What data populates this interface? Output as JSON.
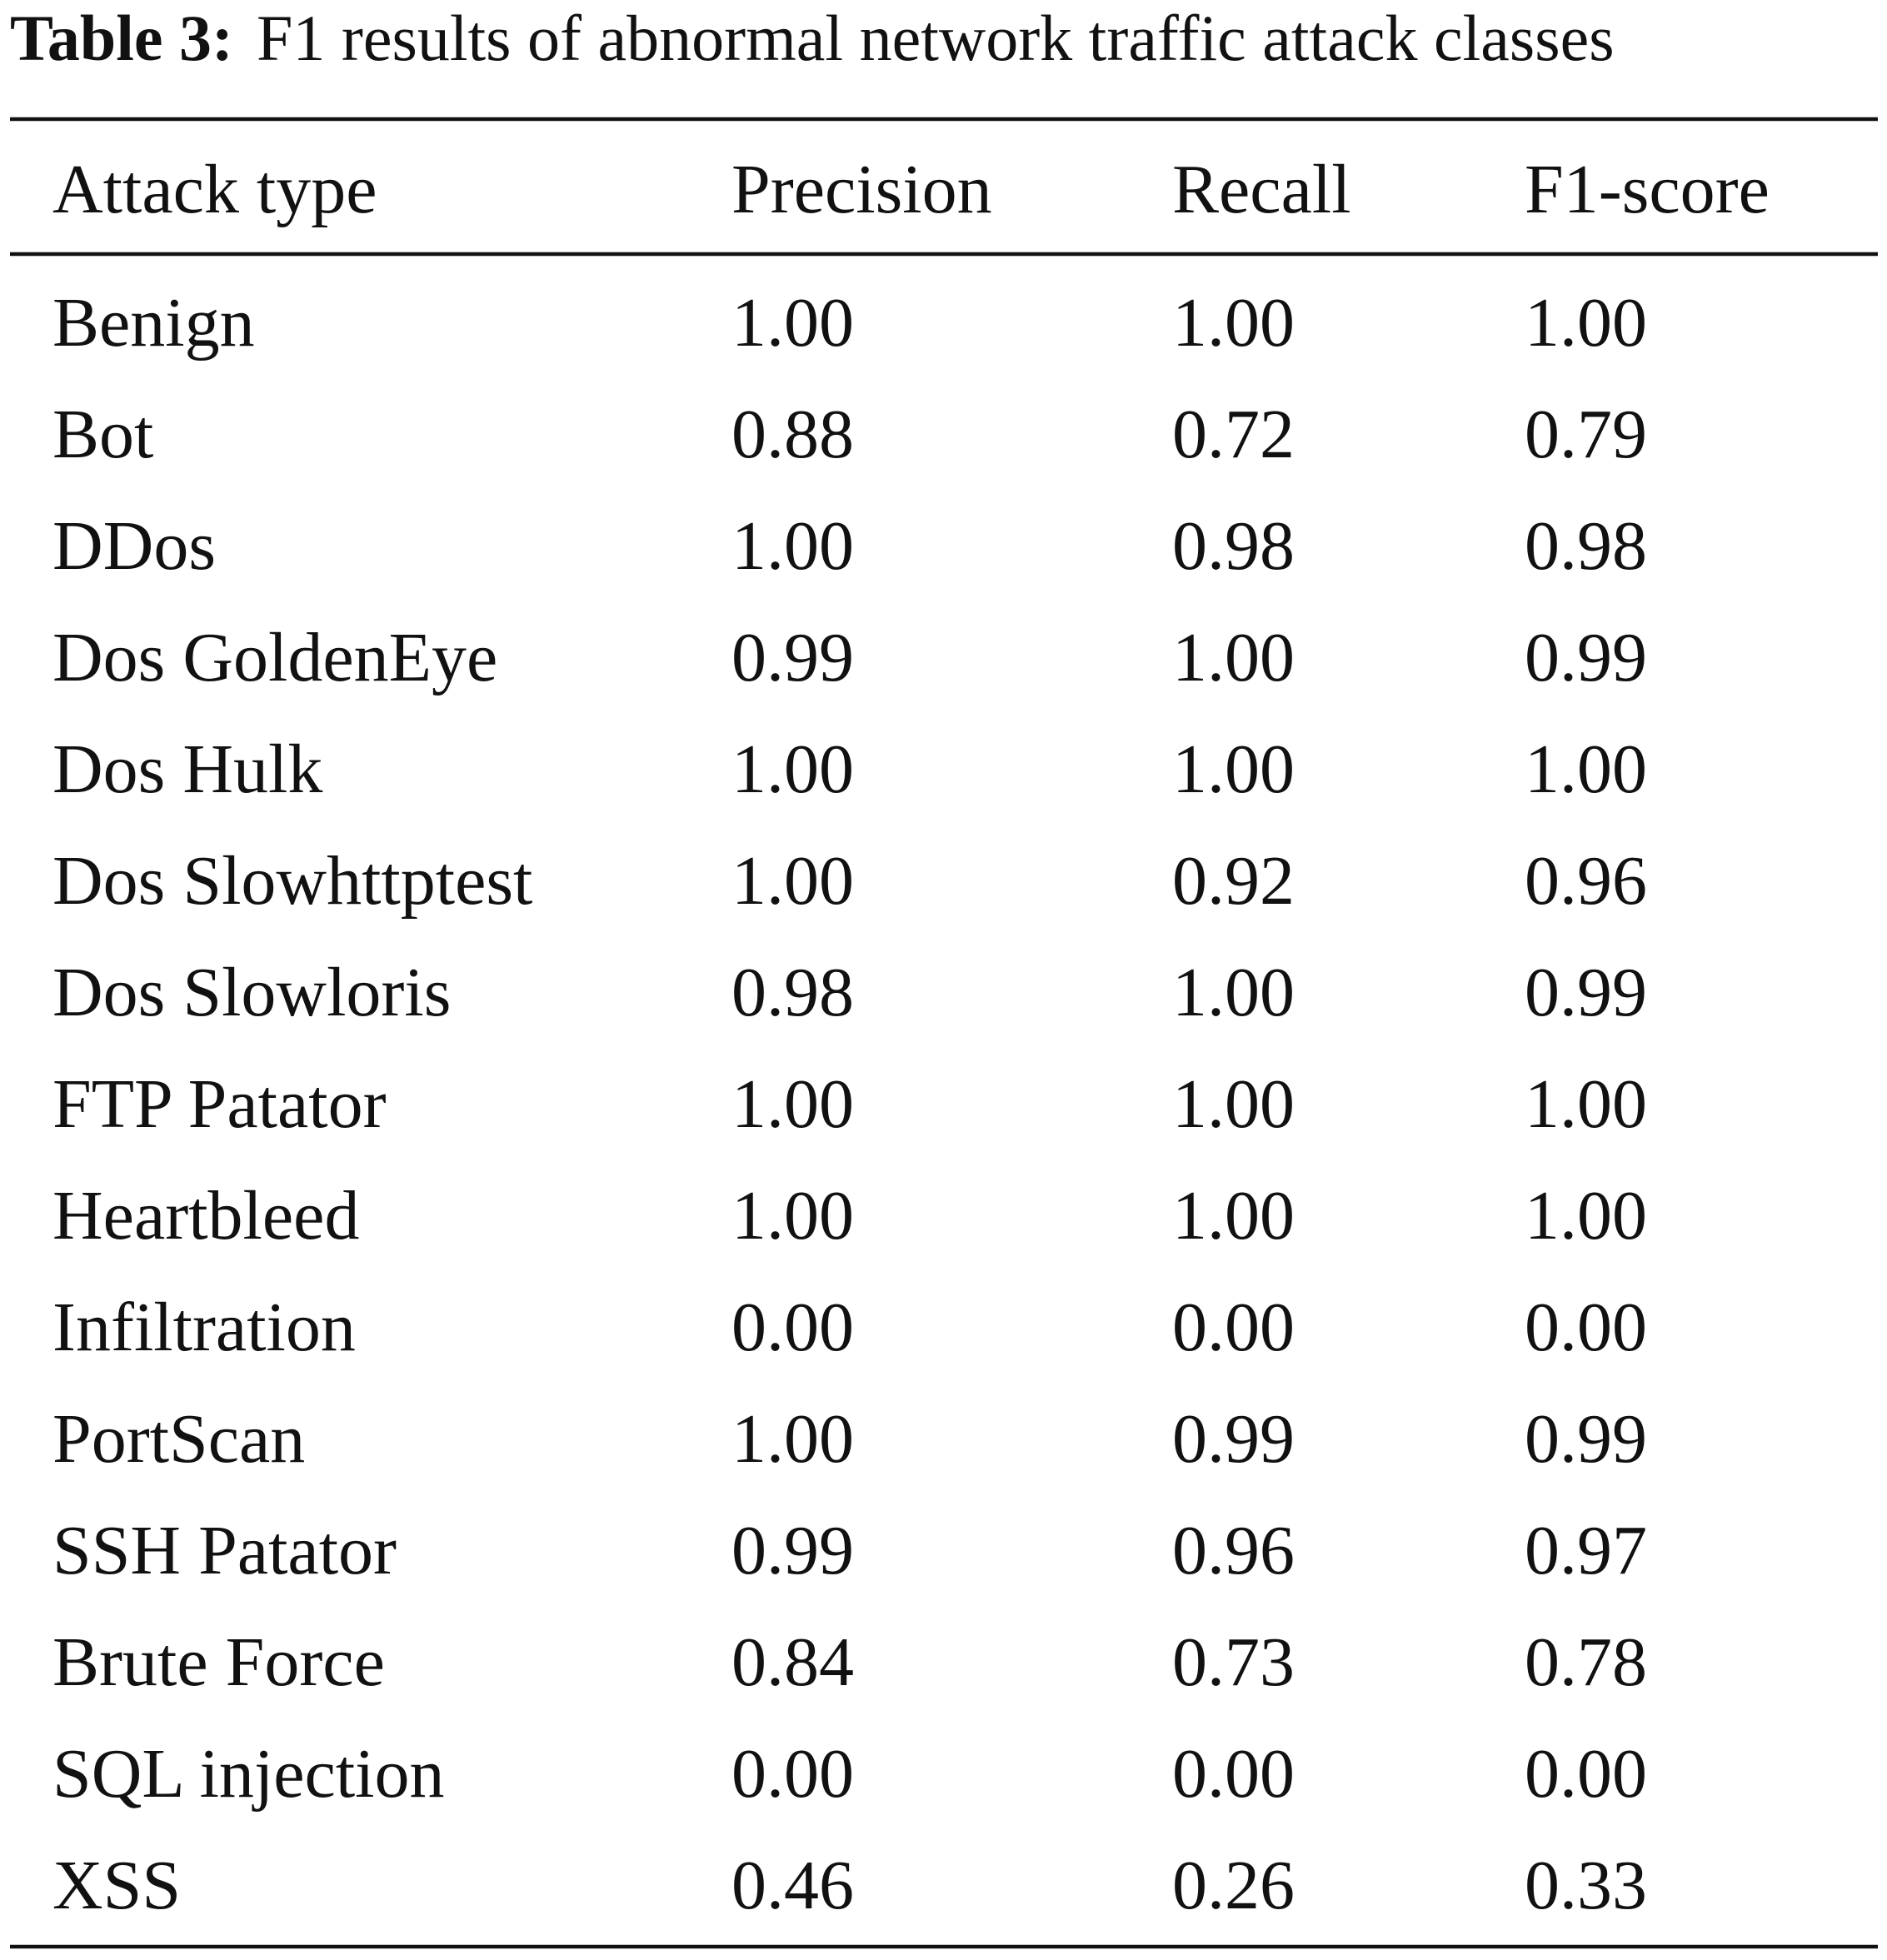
{
  "title": {
    "label": "Table 3:",
    "caption": "F1 results of abnormal network traffic attack classes"
  },
  "table": {
    "header": [
      "Attack type",
      "Precision",
      "Recall",
      "F1-score"
    ],
    "rows": [
      [
        "Benign",
        "1.00",
        "1.00",
        "1.00"
      ],
      [
        "Bot",
        "0.88",
        "0.72",
        "0.79"
      ],
      [
        "DDos",
        "1.00",
        "0.98",
        "0.98"
      ],
      [
        "Dos GoldenEye",
        "0.99",
        "1.00",
        "0.99"
      ],
      [
        "Dos Hulk",
        "1.00",
        "1.00",
        "1.00"
      ],
      [
        "Dos Slowhttptest",
        "1.00",
        "0.92",
        "0.96"
      ],
      [
        "Dos Slowloris",
        "0.98",
        "1.00",
        "0.99"
      ],
      [
        "FTP Patator",
        "1.00",
        "1.00",
        "1.00"
      ],
      [
        "Heartbleed",
        "1.00",
        "1.00",
        "1.00"
      ],
      [
        "Infiltration",
        "0.00",
        "0.00",
        "0.00"
      ],
      [
        "PortScan",
        "1.00",
        "0.99",
        "0.99"
      ],
      [
        "SSH Patator",
        "0.99",
        "0.96",
        "0.97"
      ],
      [
        "Brute Force",
        "0.84",
        "0.73",
        "0.78"
      ],
      [
        "SQL injection",
        "0.00",
        "0.00",
        "0.00"
      ],
      [
        "XSS",
        "0.46",
        "0.26",
        "0.33"
      ]
    ]
  }
}
